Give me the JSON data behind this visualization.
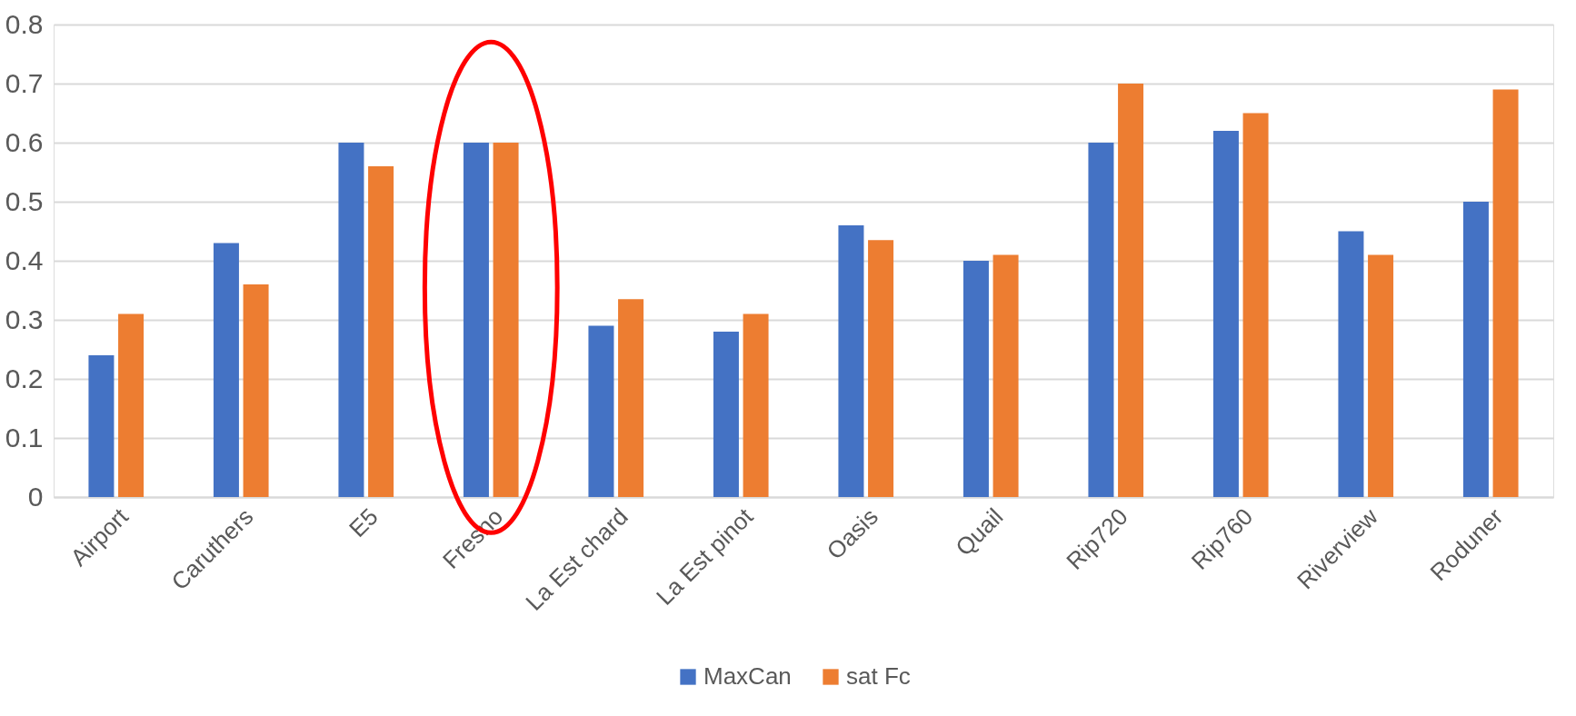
{
  "chart_data": {
    "type": "bar",
    "categories": [
      "Airport",
      "Caruthers",
      "E5",
      "Fresno",
      "La Est chard",
      "La Est pinot",
      "Oasis",
      "Quail",
      "Rip720",
      "Rip760",
      "Riverview",
      "Roduner"
    ],
    "series": [
      {
        "name": "MaxCan",
        "color": "#4472c4",
        "values": [
          0.24,
          0.43,
          0.6,
          0.6,
          0.29,
          0.28,
          0.46,
          0.4,
          0.6,
          0.62,
          0.45,
          0.5
        ]
      },
      {
        "name": "sat Fc",
        "color": "#ed7d31",
        "values": [
          0.31,
          0.36,
          0.56,
          0.6,
          0.335,
          0.31,
          0.435,
          0.41,
          0.7,
          0.65,
          0.41,
          0.69
        ]
      }
    ],
    "ylim": [
      0,
      0.8
    ],
    "yticks": [
      0,
      0.1,
      0.2,
      0.3,
      0.4,
      0.5,
      0.6,
      0.7,
      0.8
    ],
    "grid": "y",
    "legend": "bottom"
  }
}
